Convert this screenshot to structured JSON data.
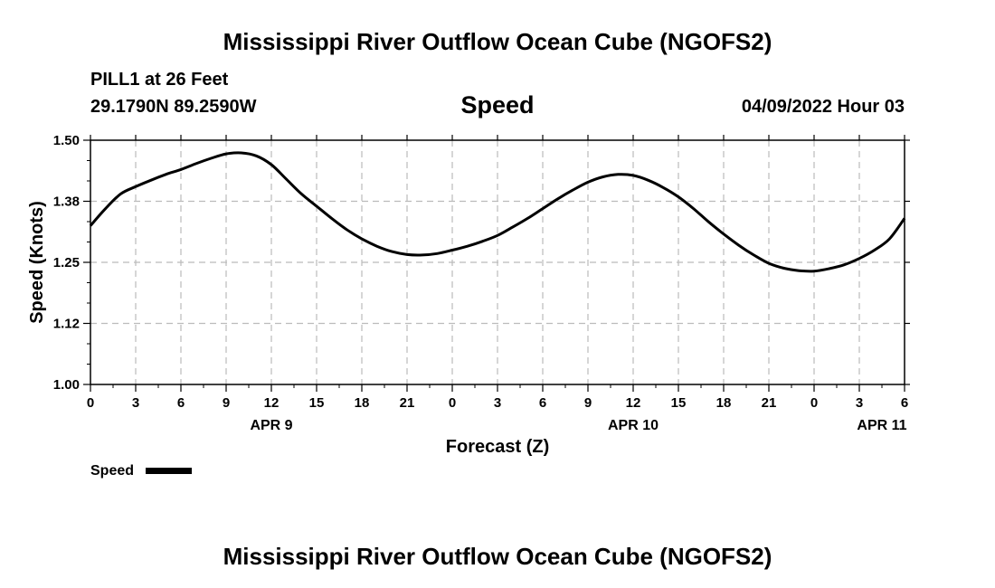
{
  "titles": {
    "top": "Mississippi River Outflow Ocean Cube (NGOFS2)",
    "bottom": "Mississippi River Outflow Ocean Cube (NGOFS2)"
  },
  "station": {
    "name": "PILL1 at 26 Feet",
    "coords": "29.1790N  89.2590W",
    "variable": "Speed",
    "datetime": "04/09/2022 Hour 03"
  },
  "chart_data": {
    "type": "line",
    "title": "Speed",
    "xlabel": "Forecast (Z)",
    "ylabel": "Speed (Knots)",
    "ylim": [
      1.0,
      1.5
    ],
    "xlim_hours": [
      0,
      54
    ],
    "y_ticks": [
      "1.00",
      "1.12",
      "1.25",
      "1.38",
      "1.50"
    ],
    "x_tick_labels": [
      "0",
      "3",
      "6",
      "9",
      "12",
      "15",
      "18",
      "21",
      "0",
      "3",
      "6",
      "9",
      "12",
      "15",
      "18",
      "21",
      "0",
      "3",
      "6"
    ],
    "date_labels": [
      {
        "label": "APR 9",
        "hour": 12
      },
      {
        "label": "APR 10",
        "hour": 36
      },
      {
        "label": "APR 11",
        "hour": 52.5
      }
    ],
    "grid": true,
    "legend": {
      "label": "Speed",
      "placement": "bottom-left"
    },
    "series": [
      {
        "name": "Speed",
        "x": [
          0,
          1,
          2,
          3,
          4,
          5,
          6,
          7,
          8,
          9,
          10,
          11,
          12,
          13,
          14,
          15,
          16,
          17,
          18,
          19,
          20,
          21,
          22,
          23,
          24,
          25,
          26,
          27,
          28,
          29,
          30,
          31,
          32,
          33,
          34,
          35,
          36,
          37,
          38,
          39,
          40,
          41,
          42,
          43,
          44,
          45,
          46,
          47,
          48,
          49,
          50,
          51,
          52,
          53,
          54
        ],
        "values": [
          1.325,
          1.36,
          1.39,
          1.405,
          1.418,
          1.43,
          1.44,
          1.452,
          1.463,
          1.472,
          1.474,
          1.468,
          1.45,
          1.42,
          1.39,
          1.365,
          1.34,
          1.317,
          1.298,
          1.283,
          1.272,
          1.266,
          1.265,
          1.268,
          1.275,
          1.283,
          1.293,
          1.305,
          1.322,
          1.34,
          1.36,
          1.38,
          1.398,
          1.414,
          1.425,
          1.43,
          1.428,
          1.418,
          1.403,
          1.384,
          1.36,
          1.333,
          1.308,
          1.285,
          1.265,
          1.248,
          1.238,
          1.233,
          1.232,
          1.237,
          1.245,
          1.258,
          1.275,
          1.298,
          1.34
        ]
      }
    ]
  }
}
